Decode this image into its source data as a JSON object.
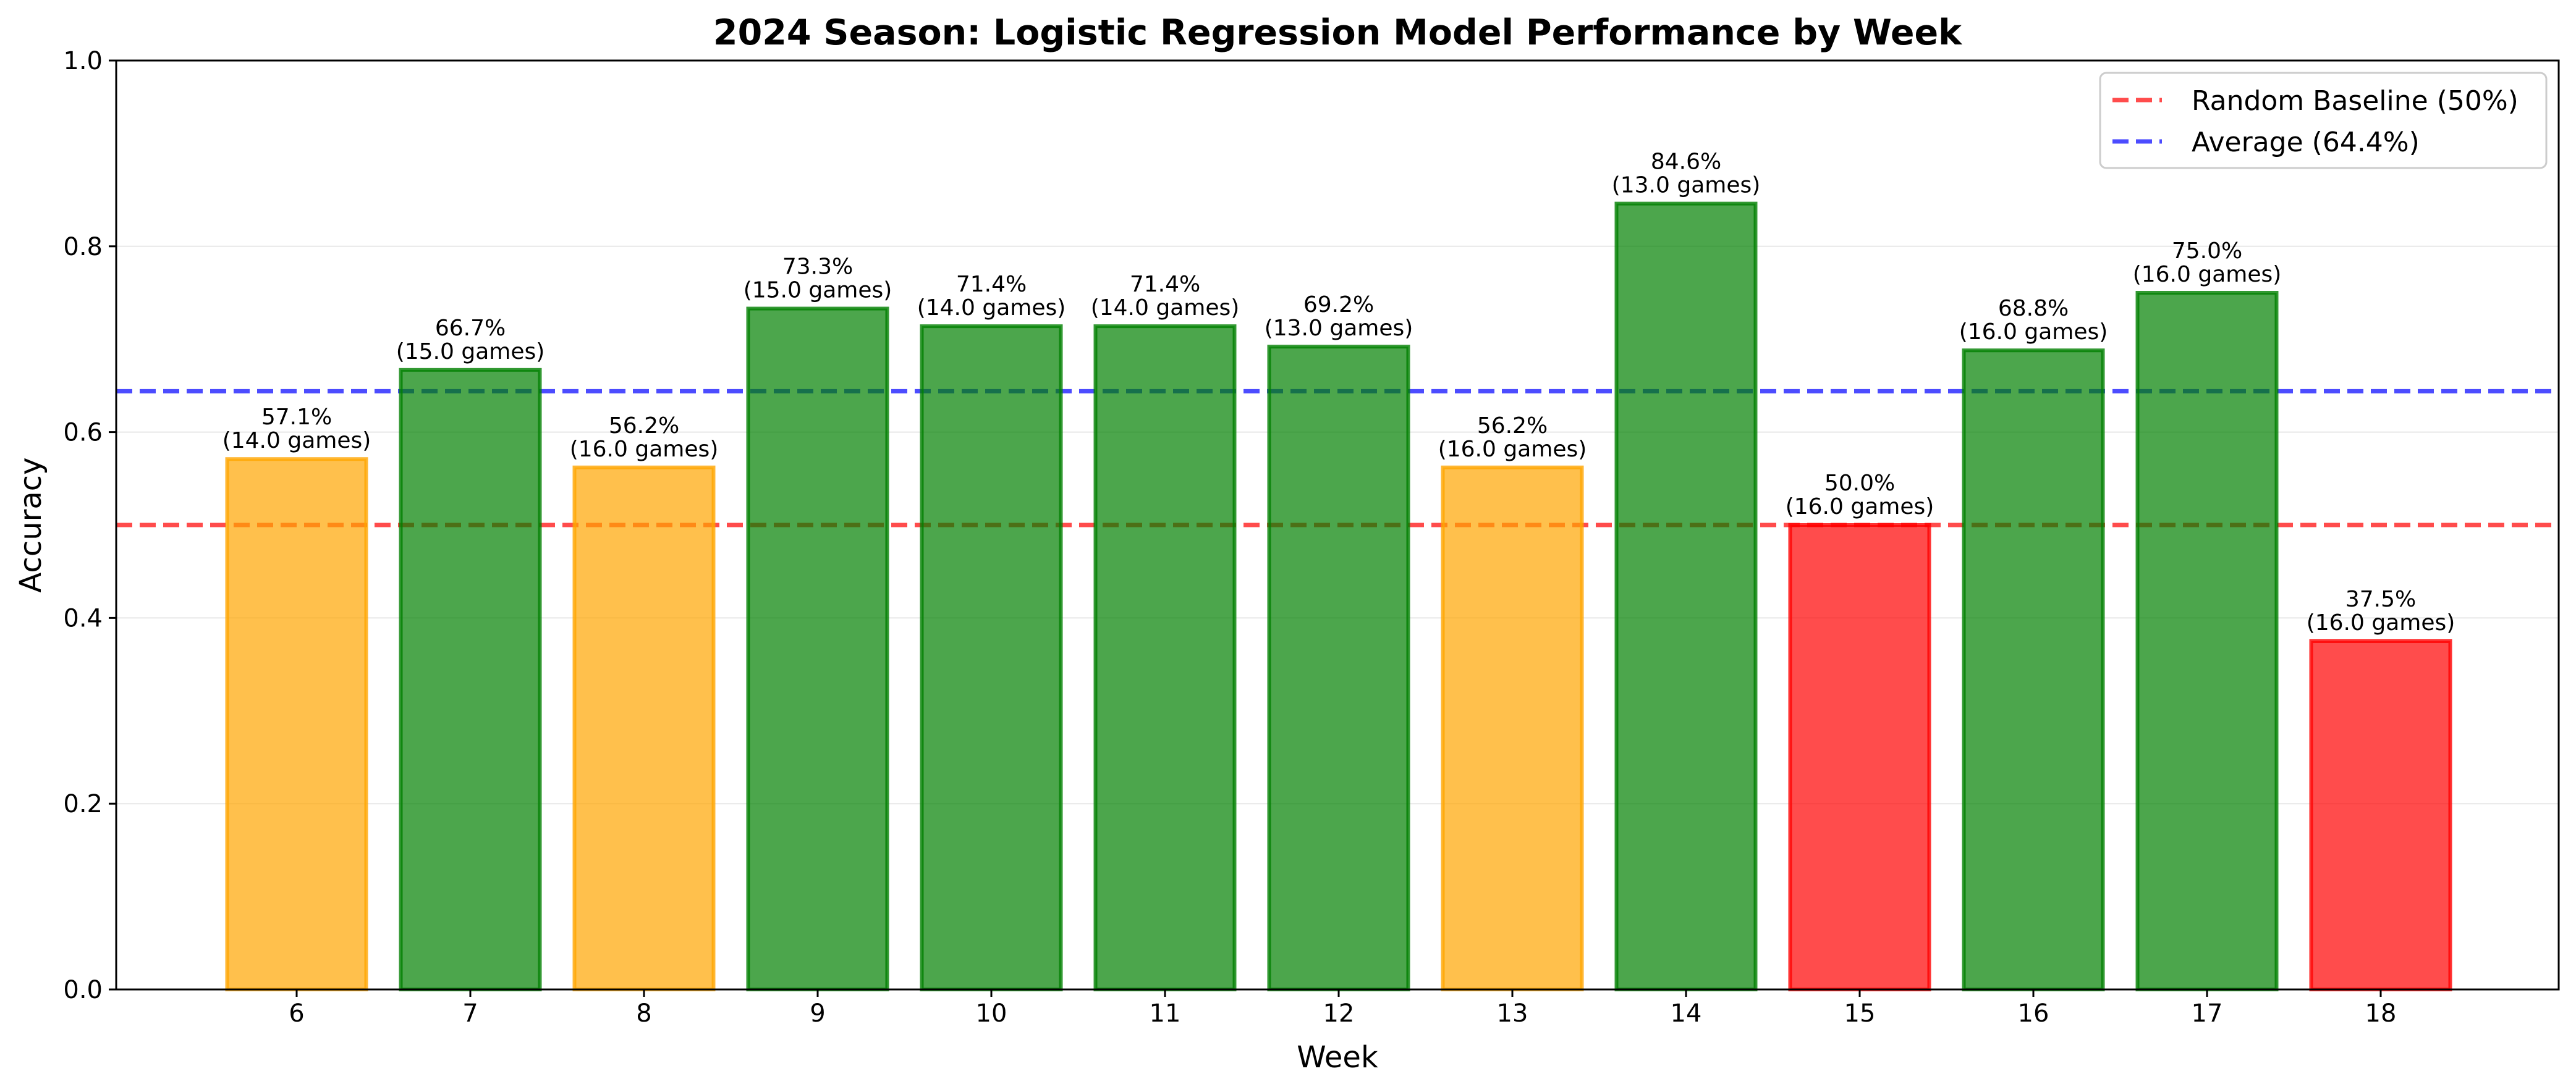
{
  "chart_data": {
    "type": "bar",
    "title": "2024 Season: Logistic Regression Model Performance by Week",
    "xlabel": "Week",
    "ylabel": "Accuracy",
    "ylim": [
      0,
      1.0
    ],
    "yticks": [
      "0.0",
      "0.2",
      "0.4",
      "0.6",
      "0.8",
      "1.0"
    ],
    "grid": true,
    "legend_position": "top-right",
    "categories": [
      "6",
      "7",
      "8",
      "9",
      "10",
      "11",
      "12",
      "13",
      "14",
      "15",
      "16",
      "17",
      "18"
    ],
    "values": [
      0.571,
      0.667,
      0.562,
      0.733,
      0.714,
      0.714,
      0.692,
      0.562,
      0.846,
      0.5,
      0.688,
      0.75,
      0.375
    ],
    "value_labels": [
      "57.1%",
      "66.7%",
      "56.2%",
      "73.3%",
      "71.4%",
      "71.4%",
      "69.2%",
      "56.2%",
      "84.6%",
      "50.0%",
      "68.8%",
      "75.0%",
      "37.5%"
    ],
    "games_labels": [
      "(14.0 games)",
      "(15.0 games)",
      "(16.0 games)",
      "(15.0 games)",
      "(14.0 games)",
      "(14.0 games)",
      "(13.0 games)",
      "(16.0 games)",
      "(13.0 games)",
      "(16.0 games)",
      "(16.0 games)",
      "(16.0 games)",
      "(16.0 games)"
    ],
    "bar_colors": [
      "#FFA500",
      "#008000",
      "#FFA500",
      "#008000",
      "#008000",
      "#008000",
      "#008000",
      "#FFA500",
      "#008000",
      "#FF0000",
      "#008000",
      "#008000",
      "#FF0000"
    ],
    "reference_lines": [
      {
        "name": "Random Baseline (50%)",
        "value": 0.5,
        "color": "#FF0000"
      },
      {
        "name": "Average (64.4%)",
        "value": 0.644,
        "color": "#0000FF"
      }
    ]
  }
}
